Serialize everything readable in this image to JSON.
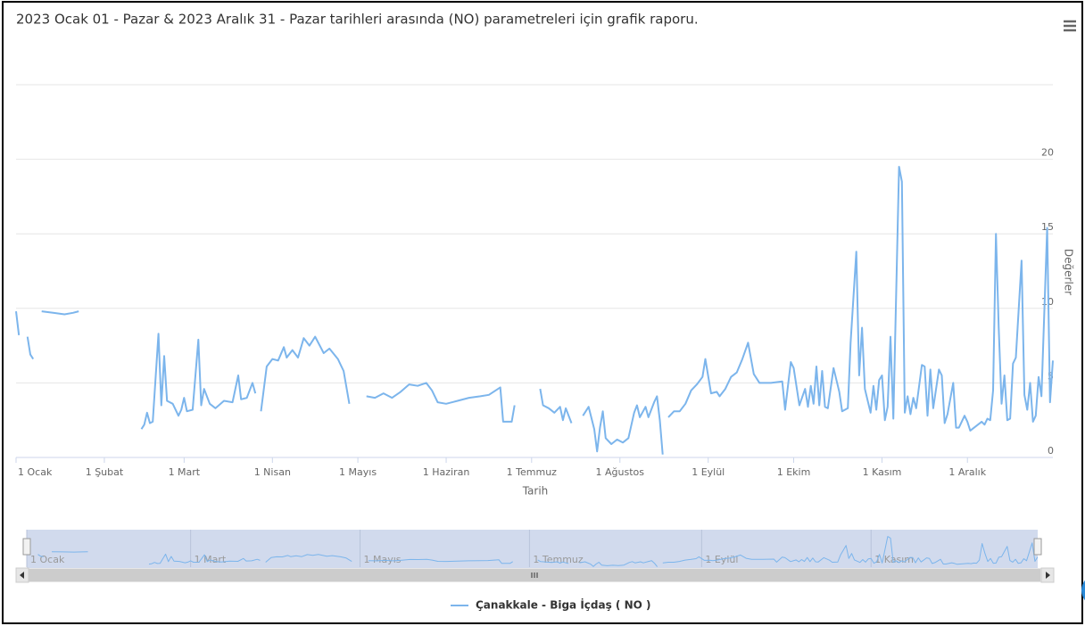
{
  "chart_data": {
    "type": "line",
    "title": "2023 Ocak 01 - Pazar & 2023 Aralık 31 - Pazar tarihleri arasında (NO) parametreleri için grafik raporu.",
    "x_label": "Tarih",
    "y_label": "Değerler",
    "xlim": [
      "2023-01-01",
      "2023-12-31"
    ],
    "xticks": [
      {
        "value": "2023-01-01",
        "label": "1 Ocak"
      },
      {
        "value": "2023-02-01",
        "label": "1 Şubat"
      },
      {
        "value": "2023-03-01",
        "label": "1 Mart"
      },
      {
        "value": "2023-04-01",
        "label": "1 Nisan"
      },
      {
        "value": "2023-05-01",
        "label": "1 Mayıs"
      },
      {
        "value": "2023-06-01",
        "label": "1 Haziran"
      },
      {
        "value": "2023-07-01",
        "label": "1 Temmuz"
      },
      {
        "value": "2023-08-01",
        "label": "1 Ağustos"
      },
      {
        "value": "2023-09-01",
        "label": "1 Eylül"
      },
      {
        "value": "2023-10-01",
        "label": "1 Ekim"
      },
      {
        "value": "2023-11-01",
        "label": "1 Kasım"
      },
      {
        "value": "2023-12-01",
        "label": "1 Aralık"
      }
    ],
    "ylim": [
      0,
      25
    ],
    "yticks": [
      0,
      5,
      10,
      15,
      20
    ],
    "grid": true,
    "legend": "bottom",
    "navigator": {
      "xticks": [
        {
          "value": "2023-01-01",
          "label": "1 Ocak"
        },
        {
          "value": "2023-03-01",
          "label": "1 Mart"
        },
        {
          "value": "2023-05-01",
          "label": "1 Mayıs"
        },
        {
          "value": "2023-07-01",
          "label": "1 Temmuz"
        },
        {
          "value": "2023-09-01",
          "label": "1 Eylül"
        },
        {
          "value": "2023-11-01",
          "label": "1 Kasım"
        }
      ]
    },
    "x": [
      "2023-01-01",
      "2023-01-02",
      "2023-01-03",
      "2023-01-05",
      "2023-01-06",
      "2023-01-07",
      "2023-01-08",
      "2023-01-10",
      "2023-01-14",
      "2023-01-18",
      "2023-01-21",
      "2023-01-23",
      "2023-01-24",
      "2023-02-14",
      "2023-02-15",
      "2023-02-16",
      "2023-02-17",
      "2023-02-18",
      "2023-02-20",
      "2023-02-21",
      "2023-02-22",
      "2023-02-23",
      "2023-02-25",
      "2023-02-27",
      "2023-02-28",
      "2023-03-01",
      "2023-03-02",
      "2023-03-04",
      "2023-03-06",
      "2023-03-07",
      "2023-03-08",
      "2023-03-10",
      "2023-03-12",
      "2023-03-15",
      "2023-03-18",
      "2023-03-20",
      "2023-03-21",
      "2023-03-23",
      "2023-03-25",
      "2023-03-26",
      "2023-03-27",
      "2023-03-28",
      "2023-03-30",
      "2023-04-01",
      "2023-04-03",
      "2023-04-05",
      "2023-04-06",
      "2023-04-08",
      "2023-04-10",
      "2023-04-12",
      "2023-04-14",
      "2023-04-16",
      "2023-04-19",
      "2023-04-21",
      "2023-04-24",
      "2023-04-26",
      "2023-04-28",
      "2023-04-29",
      "2023-05-04",
      "2023-05-07",
      "2023-05-10",
      "2023-05-13",
      "2023-05-16",
      "2023-05-19",
      "2023-05-22",
      "2023-05-25",
      "2023-05-27",
      "2023-05-29",
      "2023-06-01",
      "2023-06-05",
      "2023-06-09",
      "2023-06-13",
      "2023-06-16",
      "2023-06-20",
      "2023-06-21",
      "2023-06-24",
      "2023-06-25",
      "2023-06-26",
      "2023-07-04",
      "2023-07-05",
      "2023-07-07",
      "2023-07-09",
      "2023-07-11",
      "2023-07-12",
      "2023-07-13",
      "2023-07-15",
      "2023-07-16",
      "2023-07-19",
      "2023-07-21",
      "2023-07-23",
      "2023-07-24",
      "2023-07-25",
      "2023-07-26",
      "2023-07-27",
      "2023-07-29",
      "2023-07-31",
      "2023-08-02",
      "2023-08-04",
      "2023-08-06",
      "2023-08-07",
      "2023-08-08",
      "2023-08-10",
      "2023-08-11",
      "2023-08-13",
      "2023-08-14",
      "2023-08-15",
      "2023-08-16",
      "2023-08-17",
      "2023-08-18",
      "2023-08-20",
      "2023-08-22",
      "2023-08-24",
      "2023-08-26",
      "2023-08-28",
      "2023-08-30",
      "2023-08-31",
      "2023-09-02",
      "2023-09-04",
      "2023-09-05",
      "2023-09-07",
      "2023-09-09",
      "2023-09-11",
      "2023-09-13",
      "2023-09-15",
      "2023-09-17",
      "2023-09-19",
      "2023-09-23",
      "2023-09-27",
      "2023-09-28",
      "2023-09-30",
      "2023-10-01",
      "2023-10-03",
      "2023-10-05",
      "2023-10-06",
      "2023-10-07",
      "2023-10-08",
      "2023-10-09",
      "2023-10-10",
      "2023-10-11",
      "2023-10-12",
      "2023-10-13",
      "2023-10-15",
      "2023-10-17",
      "2023-10-18",
      "2023-10-20",
      "2023-10-21",
      "2023-10-23",
      "2023-10-24",
      "2023-10-25",
      "2023-10-26",
      "2023-10-28",
      "2023-10-29",
      "2023-10-30",
      "2023-10-31",
      "2023-11-01",
      "2023-11-02",
      "2023-11-03",
      "2023-11-04",
      "2023-11-05",
      "2023-11-07",
      "2023-11-08",
      "2023-11-09",
      "2023-11-10",
      "2023-11-11",
      "2023-11-12",
      "2023-11-13",
      "2023-11-15",
      "2023-11-16",
      "2023-11-17",
      "2023-11-18",
      "2023-11-19",
      "2023-11-21",
      "2023-11-22",
      "2023-11-23",
      "2023-11-24",
      "2023-11-26",
      "2023-11-27",
      "2023-11-28",
      "2023-11-30",
      "2023-12-01",
      "2023-12-02",
      "2023-12-04",
      "2023-12-06",
      "2023-12-07",
      "2023-12-08",
      "2023-12-09",
      "2023-12-10",
      "2023-12-11",
      "2023-12-12",
      "2023-12-13",
      "2023-12-14",
      "2023-12-15",
      "2023-12-16",
      "2023-12-17",
      "2023-12-18",
      "2023-12-20",
      "2023-12-21",
      "2023-12-22",
      "2023-12-23",
      "2023-12-24",
      "2023-12-25",
      "2023-12-26",
      "2023-12-27",
      "2023-12-29",
      "2023-12-30",
      "2023-12-31"
    ],
    "series": [
      {
        "name": "Çanakkale - Biga İçdaş ( NO )",
        "color": "#7cb5ec",
        "values": [
          9.8,
          8.2,
          null,
          8.1,
          6.9,
          6.6,
          null,
          9.8,
          9.7,
          9.6,
          9.7,
          9.8,
          null,
          1.9,
          2.2,
          3.0,
          2.3,
          2.4,
          8.3,
          3.5,
          6.8,
          3.8,
          3.6,
          2.8,
          3.2,
          4.0,
          3.1,
          3.2,
          7.9,
          3.5,
          4.6,
          3.6,
          3.3,
          3.8,
          3.7,
          5.5,
          3.9,
          4.0,
          5.0,
          4.3,
          null,
          3.1,
          6.1,
          6.6,
          6.5,
          7.4,
          6.7,
          7.2,
          6.7,
          8.0,
          7.5,
          8.1,
          7.0,
          7.3,
          6.6,
          5.8,
          3.6,
          null,
          4.1,
          4.0,
          4.3,
          4.0,
          4.4,
          4.9,
          4.8,
          5.0,
          4.5,
          3.7,
          3.6,
          3.8,
          4.0,
          4.1,
          4.2,
          4.7,
          2.4,
          2.4,
          3.5,
          null,
          4.6,
          3.5,
          3.3,
          3.0,
          3.4,
          2.5,
          3.3,
          2.3,
          null,
          2.8,
          3.4,
          1.9,
          0.4,
          2.0,
          3.1,
          1.3,
          0.9,
          1.2,
          1.0,
          1.3,
          3.0,
          3.5,
          2.7,
          3.4,
          2.7,
          3.7,
          4.1,
          2.5,
          0.2,
          null,
          2.7,
          3.1,
          3.1,
          3.6,
          4.5,
          4.9,
          5.4,
          6.6,
          4.3,
          4.4,
          4.1,
          4.6,
          5.4,
          5.7,
          6.6,
          7.7,
          5.6,
          5.0,
          5.0,
          5.1,
          3.2,
          6.4,
          6.0,
          3.5,
          4.6,
          3.4,
          4.8,
          3.6,
          6.1,
          3.5,
          5.8,
          3.4,
          3.3,
          6.0,
          4.4,
          3.1,
          3.3,
          7.7,
          13.8,
          5.5,
          8.7,
          4.6,
          3.0,
          4.8,
          3.2,
          5.2,
          5.5,
          2.5,
          3.4,
          8.1,
          2.6,
          19.5,
          18.5,
          3.0,
          4.1,
          2.9,
          4.0,
          3.3,
          6.2,
          6.1,
          2.8,
          5.9,
          3.3,
          5.9,
          5.5,
          2.3,
          2.9,
          5.0,
          2.0,
          2.0,
          2.8,
          2.4,
          1.8,
          2.1,
          2.4,
          2.2,
          2.6,
          2.5,
          4.5,
          15.0,
          8.7,
          3.6,
          5.5,
          2.5,
          2.6,
          6.3,
          6.7,
          13.2,
          4.2,
          3.2,
          5.0,
          2.4,
          2.8,
          5.4,
          4.1,
          15.4,
          3.7,
          6.5
        ]
      }
    ]
  }
}
